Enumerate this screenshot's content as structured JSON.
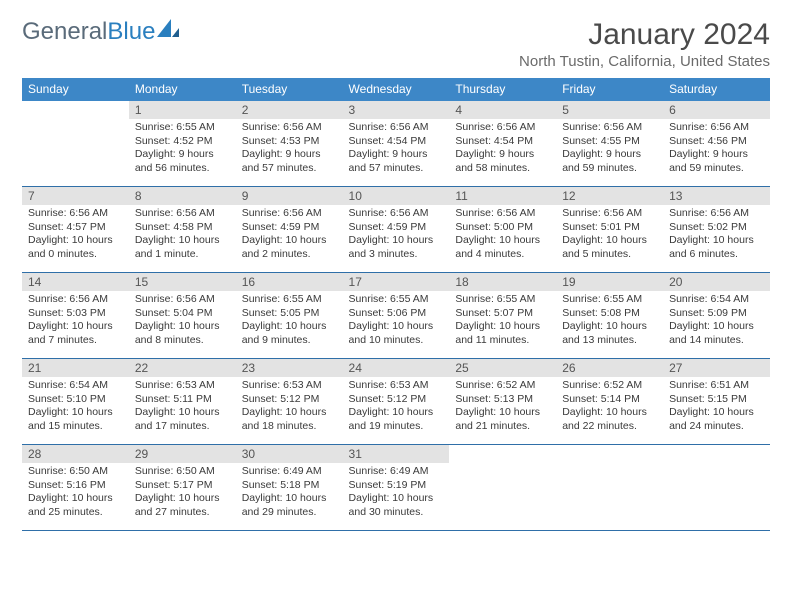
{
  "brand": {
    "part1": "General",
    "part2": "Blue"
  },
  "title": "January 2024",
  "location": "North Tustin, California, United States",
  "weekdays": [
    "Sunday",
    "Monday",
    "Tuesday",
    "Wednesday",
    "Thursday",
    "Friday",
    "Saturday"
  ],
  "colors": {
    "header_bg": "#3d87c7",
    "header_text": "#ffffff",
    "daynum_bg": "#e3e3e3",
    "cell_border": "#2f6fa8",
    "logo_gray": "#5a6b7a",
    "logo_blue": "#2a7fbf"
  },
  "first_weekday_offset": 1,
  "days": [
    {
      "n": 1,
      "sunrise": "6:55 AM",
      "sunset": "4:52 PM",
      "daylight": "9 hours and 56 minutes."
    },
    {
      "n": 2,
      "sunrise": "6:56 AM",
      "sunset": "4:53 PM",
      "daylight": "9 hours and 57 minutes."
    },
    {
      "n": 3,
      "sunrise": "6:56 AM",
      "sunset": "4:54 PM",
      "daylight": "9 hours and 57 minutes."
    },
    {
      "n": 4,
      "sunrise": "6:56 AM",
      "sunset": "4:54 PM",
      "daylight": "9 hours and 58 minutes."
    },
    {
      "n": 5,
      "sunrise": "6:56 AM",
      "sunset": "4:55 PM",
      "daylight": "9 hours and 59 minutes."
    },
    {
      "n": 6,
      "sunrise": "6:56 AM",
      "sunset": "4:56 PM",
      "daylight": "9 hours and 59 minutes."
    },
    {
      "n": 7,
      "sunrise": "6:56 AM",
      "sunset": "4:57 PM",
      "daylight": "10 hours and 0 minutes."
    },
    {
      "n": 8,
      "sunrise": "6:56 AM",
      "sunset": "4:58 PM",
      "daylight": "10 hours and 1 minute."
    },
    {
      "n": 9,
      "sunrise": "6:56 AM",
      "sunset": "4:59 PM",
      "daylight": "10 hours and 2 minutes."
    },
    {
      "n": 10,
      "sunrise": "6:56 AM",
      "sunset": "4:59 PM",
      "daylight": "10 hours and 3 minutes."
    },
    {
      "n": 11,
      "sunrise": "6:56 AM",
      "sunset": "5:00 PM",
      "daylight": "10 hours and 4 minutes."
    },
    {
      "n": 12,
      "sunrise": "6:56 AM",
      "sunset": "5:01 PM",
      "daylight": "10 hours and 5 minutes."
    },
    {
      "n": 13,
      "sunrise": "6:56 AM",
      "sunset": "5:02 PM",
      "daylight": "10 hours and 6 minutes."
    },
    {
      "n": 14,
      "sunrise": "6:56 AM",
      "sunset": "5:03 PM",
      "daylight": "10 hours and 7 minutes."
    },
    {
      "n": 15,
      "sunrise": "6:56 AM",
      "sunset": "5:04 PM",
      "daylight": "10 hours and 8 minutes."
    },
    {
      "n": 16,
      "sunrise": "6:55 AM",
      "sunset": "5:05 PM",
      "daylight": "10 hours and 9 minutes."
    },
    {
      "n": 17,
      "sunrise": "6:55 AM",
      "sunset": "5:06 PM",
      "daylight": "10 hours and 10 minutes."
    },
    {
      "n": 18,
      "sunrise": "6:55 AM",
      "sunset": "5:07 PM",
      "daylight": "10 hours and 11 minutes."
    },
    {
      "n": 19,
      "sunrise": "6:55 AM",
      "sunset": "5:08 PM",
      "daylight": "10 hours and 13 minutes."
    },
    {
      "n": 20,
      "sunrise": "6:54 AM",
      "sunset": "5:09 PM",
      "daylight": "10 hours and 14 minutes."
    },
    {
      "n": 21,
      "sunrise": "6:54 AM",
      "sunset": "5:10 PM",
      "daylight": "10 hours and 15 minutes."
    },
    {
      "n": 22,
      "sunrise": "6:53 AM",
      "sunset": "5:11 PM",
      "daylight": "10 hours and 17 minutes."
    },
    {
      "n": 23,
      "sunrise": "6:53 AM",
      "sunset": "5:12 PM",
      "daylight": "10 hours and 18 minutes."
    },
    {
      "n": 24,
      "sunrise": "6:53 AM",
      "sunset": "5:12 PM",
      "daylight": "10 hours and 19 minutes."
    },
    {
      "n": 25,
      "sunrise": "6:52 AM",
      "sunset": "5:13 PM",
      "daylight": "10 hours and 21 minutes."
    },
    {
      "n": 26,
      "sunrise": "6:52 AM",
      "sunset": "5:14 PM",
      "daylight": "10 hours and 22 minutes."
    },
    {
      "n": 27,
      "sunrise": "6:51 AM",
      "sunset": "5:15 PM",
      "daylight": "10 hours and 24 minutes."
    },
    {
      "n": 28,
      "sunrise": "6:50 AM",
      "sunset": "5:16 PM",
      "daylight": "10 hours and 25 minutes."
    },
    {
      "n": 29,
      "sunrise": "6:50 AM",
      "sunset": "5:17 PM",
      "daylight": "10 hours and 27 minutes."
    },
    {
      "n": 30,
      "sunrise": "6:49 AM",
      "sunset": "5:18 PM",
      "daylight": "10 hours and 29 minutes."
    },
    {
      "n": 31,
      "sunrise": "6:49 AM",
      "sunset": "5:19 PM",
      "daylight": "10 hours and 30 minutes."
    }
  ],
  "labels": {
    "sunrise": "Sunrise: ",
    "sunset": "Sunset: ",
    "daylight": "Daylight: "
  }
}
